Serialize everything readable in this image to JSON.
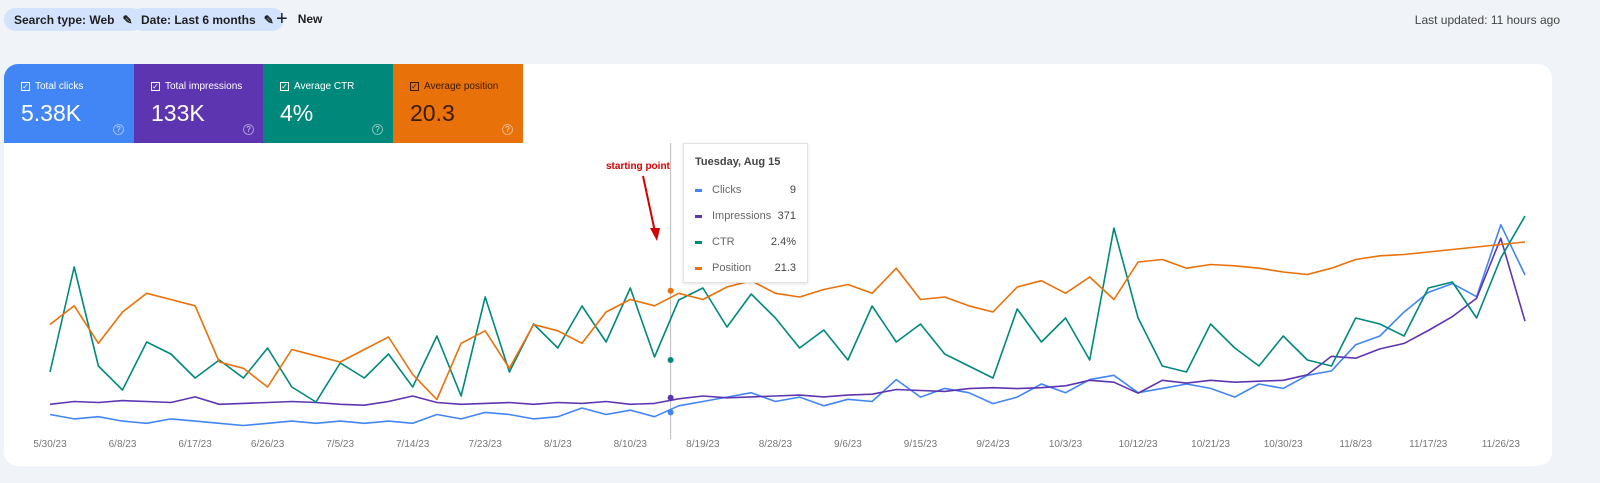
{
  "filters": {
    "search_type": "Search type: Web",
    "date": "Date: Last 6 months",
    "new_label": "New",
    "last_updated": "Last updated: 11 hours ago"
  },
  "metrics": [
    {
      "label": "Total clicks",
      "value": "5.38K",
      "color": "#4285f4",
      "checked": true
    },
    {
      "label": "Total impressions",
      "value": "133K",
      "color": "#5e35b1",
      "checked": true
    },
    {
      "label": "Average CTR",
      "value": "4%",
      "color": "#00897b",
      "checked": true
    },
    {
      "label": "Average position",
      "value": "20.3",
      "color": "#e8710a",
      "checked": true
    }
  ],
  "annotation": "starting point",
  "tooltip": {
    "date": "Tuesday, Aug 15",
    "rows": [
      {
        "label": "Clicks",
        "value": "9",
        "color": "#4285f4"
      },
      {
        "label": "Impressions",
        "value": "371",
        "color": "#5e35b1"
      },
      {
        "label": "CTR",
        "value": "2.4%",
        "color": "#00897b"
      },
      {
        "label": "Position",
        "value": "21.3",
        "color": "#e8710a"
      }
    ]
  },
  "chart_data": {
    "type": "line",
    "grid": false,
    "highlight_date": "8/15/23",
    "x_tick_labels": [
      "5/30/23",
      "6/8/23",
      "6/17/23",
      "6/26/23",
      "7/5/23",
      "7/14/23",
      "7/23/23",
      "8/1/23",
      "8/10/23",
      "8/19/23",
      "8/28/23",
      "9/6/23",
      "9/15/23",
      "9/24/23",
      "10/3/23",
      "10/12/23",
      "10/21/23",
      "10/30/23",
      "11/8/23",
      "11/17/23",
      "11/26/23"
    ],
    "x": [
      "5/30/23",
      "6/2/23",
      "6/5/23",
      "6/8/23",
      "6/11/23",
      "6/14/23",
      "6/17/23",
      "6/20/23",
      "6/23/23",
      "6/26/23",
      "6/29/23",
      "7/2/23",
      "7/5/23",
      "7/8/23",
      "7/11/23",
      "7/14/23",
      "7/17/23",
      "7/20/23",
      "7/23/23",
      "7/26/23",
      "7/29/23",
      "8/1/23",
      "8/4/23",
      "8/7/23",
      "8/10/23",
      "8/13/23",
      "8/16/23",
      "8/19/23",
      "8/22/23",
      "8/25/23",
      "8/28/23",
      "8/31/23",
      "9/3/23",
      "9/6/23",
      "9/9/23",
      "9/12/23",
      "9/15/23",
      "9/18/23",
      "9/21/23",
      "9/24/23",
      "9/27/23",
      "9/30/23",
      "10/3/23",
      "10/6/23",
      "10/9/23",
      "10/12/23",
      "10/15/23",
      "10/18/23",
      "10/21/23",
      "10/24/23",
      "10/27/23",
      "10/30/23",
      "11/2/23",
      "11/5/23",
      "11/8/23",
      "11/11/23",
      "11/14/23",
      "11/17/23",
      "11/20/23",
      "11/23/23",
      "11/26/23",
      "11/29/23"
    ],
    "series": [
      {
        "name": "Clicks",
        "color": "#4285f4",
        "ylim": [
          0,
          110
        ],
        "reversed": false,
        "values": [
          8,
          6,
          7,
          5,
          4,
          6,
          5,
          4,
          3,
          4,
          5,
          4,
          5,
          4,
          5,
          4,
          8,
          6,
          9,
          8,
          6,
          7,
          11,
          8,
          10,
          7,
          12,
          14,
          16,
          18,
          14,
          16,
          12,
          15,
          14,
          24,
          16,
          20,
          18,
          13,
          16,
          22,
          18,
          24,
          26,
          18,
          20,
          22,
          20,
          16,
          22,
          20,
          26,
          28,
          40,
          44,
          55,
          64,
          68,
          62,
          95,
          72
        ]
      },
      {
        "name": "Impressions",
        "color": "#5e35b1",
        "ylim": [
          0,
          2600
        ],
        "reversed": false,
        "values": [
          300,
          330,
          320,
          340,
          330,
          320,
          380,
          300,
          310,
          320,
          330,
          320,
          300,
          290,
          330,
          390,
          320,
          300,
          310,
          320,
          300,
          320,
          310,
          330,
          300,
          310,
          360,
          390,
          370,
          380,
          390,
          400,
          380,
          400,
          410,
          460,
          450,
          440,
          470,
          480,
          470,
          480,
          500,
          560,
          540,
          420,
          560,
          530,
          560,
          540,
          550,
          560,
          620,
          820,
          800,
          900,
          960,
          1100,
          1250,
          1450,
          2100,
          1200
        ]
      },
      {
        "name": "CTR",
        "color": "#00897b",
        "ylim": [
          0,
          8
        ],
        "reversed": false,
        "values": [
          2.0,
          5.5,
          2.2,
          1.4,
          3.0,
          2.6,
          1.8,
          2.4,
          1.8,
          2.8,
          1.5,
          1.0,
          2.3,
          1.8,
          2.6,
          1.5,
          3.2,
          1.2,
          4.5,
          2.0,
          3.6,
          2.8,
          4.2,
          3.0,
          4.8,
          2.5,
          4.4,
          4.8,
          3.5,
          4.6,
          3.8,
          2.8,
          3.4,
          2.4,
          4.2,
          3.0,
          3.6,
          2.6,
          2.2,
          1.8,
          4.1,
          3.0,
          3.8,
          2.4,
          6.8,
          3.8,
          2.2,
          2.0,
          3.6,
          2.8,
          2.2,
          3.2,
          2.4,
          2.2,
          3.8,
          3.6,
          3.2,
          4.8,
          5.0,
          3.8,
          5.8,
          7.2
        ]
      },
      {
        "name": "Position",
        "color": "#e8710a",
        "ylim": [
          13.4,
          32.6
        ],
        "reversed": true,
        "values": [
          24,
          22.5,
          25.5,
          23,
          21.5,
          22,
          22.5,
          27,
          27.5,
          29,
          26,
          26.5,
          27,
          26,
          25,
          28,
          30,
          25.5,
          24.5,
          27.5,
          24,
          24.5,
          25.5,
          23,
          22,
          22.5,
          21.5,
          22,
          21,
          20.5,
          21.5,
          21.8,
          21.2,
          20.8,
          21.5,
          19.5,
          22,
          21.8,
          22.5,
          23,
          21,
          20.5,
          21.5,
          20.2,
          22,
          19,
          18.8,
          19.5,
          19.2,
          19.3,
          19.5,
          19.8,
          20,
          19.5,
          18.8,
          18.5,
          18.4,
          18.2,
          18,
          17.8,
          17.6,
          17.4
        ]
      }
    ]
  }
}
